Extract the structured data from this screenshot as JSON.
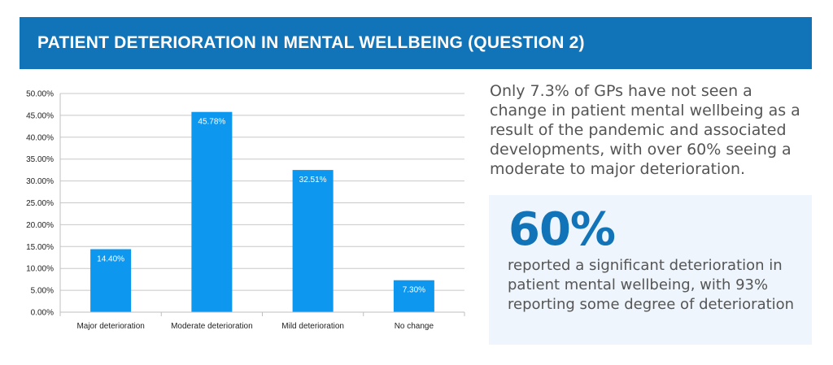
{
  "header": {
    "title": "PATIENT DETERIORATION IN MENTAL WELLBEING (QUESTION 2)"
  },
  "summary": {
    "text": "Only 7.3% of GPs have not seen a change in patient mental wellbeing as a result of the pandemic and associated developments, with over 60% seeing a moderate to major deterioration."
  },
  "callout": {
    "headline": "60%",
    "text": "reported a significant deterioration in patient mental wellbeing, with 93% reporting some degree of deterioration"
  },
  "colors": {
    "banner": "#1274b8",
    "bar": "#0d97ee",
    "callout_bg": "#eef5fc",
    "headline": "#1274b8"
  },
  "chart_data": {
    "type": "bar",
    "categories": [
      "Major deterioration",
      "Moderate deterioration",
      "Mild deterioration",
      "No change"
    ],
    "values": [
      14.4,
      45.78,
      32.51,
      7.3
    ],
    "data_labels": [
      "14.40%",
      "45.78%",
      "32.51%",
      "7.30%"
    ],
    "y_ticks": [
      "0.00%",
      "5.00%",
      "10.00%",
      "15.00%",
      "20.00%",
      "25.00%",
      "30.00%",
      "35.00%",
      "40.00%",
      "45.00%",
      "50.00%"
    ],
    "ylim": [
      0,
      50
    ],
    "grid": true,
    "legend": "none",
    "title": "",
    "xlabel": "",
    "ylabel": ""
  }
}
